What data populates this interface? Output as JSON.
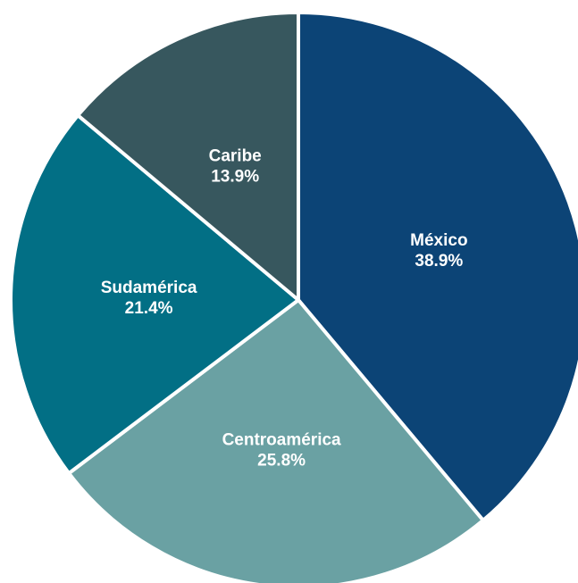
{
  "chart_data": {
    "type": "pie",
    "title": "",
    "start_angle": "top, clockwise",
    "slices": [
      {
        "label": "México",
        "value": 38.9,
        "display": "38.9%",
        "color": "#0C4476"
      },
      {
        "label": "Centroamérica",
        "value": 25.8,
        "display": "25.8%",
        "color": "#6AA1A3"
      },
      {
        "label": "Sudamérica",
        "value": 21.4,
        "display": "21.4%",
        "color": "#026F85"
      },
      {
        "label": "Caribe",
        "value": 13.9,
        "display": "13.9%",
        "color": "#37575E"
      }
    ],
    "separator_color": "#ffffff",
    "label_color": "#ffffff"
  }
}
